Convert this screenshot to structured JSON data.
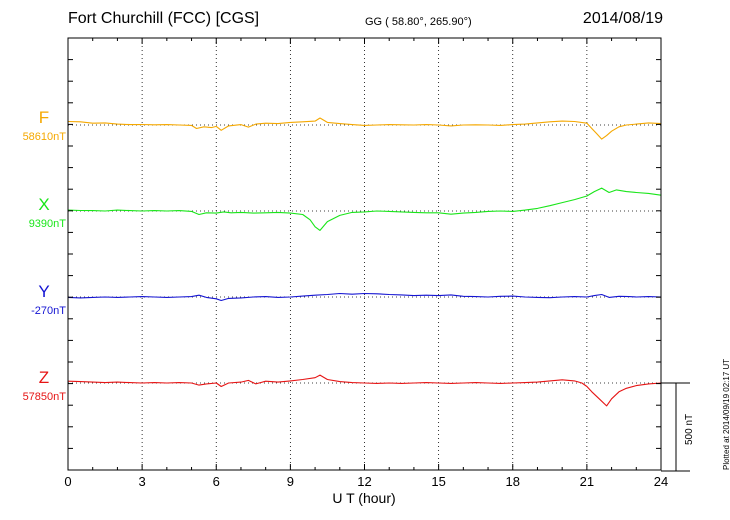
{
  "header": {
    "station": "Fort Churchill (FCC)  [CGS]",
    "coordinates": "GG ( 58.80°, 265.90°)",
    "date": "2014/08/19"
  },
  "footer": {
    "plotted": "Plotted at 2014/09/19 02:17 UT"
  },
  "scale_bar": {
    "label": "500 nT",
    "value_nT": 500
  },
  "chart_data": {
    "type": "line",
    "xlabel": "U T (hour)",
    "xlim": [
      0,
      24
    ],
    "x_ticks": [
      "0",
      "3",
      "6",
      "9",
      "12",
      "15",
      "18",
      "21",
      "24"
    ],
    "grid": true,
    "series": [
      {
        "name": "F",
        "baseline_label": "58610nT",
        "baseline_nT": 58610,
        "color": "#f5a800",
        "x": [
          0,
          0.5,
          1,
          1.5,
          2,
          2.5,
          3,
          3.5,
          4,
          4.5,
          5,
          5.2,
          5.5,
          5.8,
          6,
          6.2,
          6.5,
          7,
          7.3,
          7.6,
          8,
          8.5,
          9,
          9.5,
          10,
          10.2,
          10.5,
          11,
          11.5,
          12,
          12.5,
          13,
          13.5,
          14,
          14.5,
          15,
          15.5,
          16,
          16.5,
          17,
          17.5,
          18,
          18.5,
          19,
          19.5,
          20,
          20.5,
          21,
          21.2,
          21.4,
          21.6,
          21.8,
          22,
          22.3,
          22.6,
          23,
          23.5,
          24
        ],
        "y": [
          58630,
          58628,
          58620,
          58622,
          58615,
          58612,
          58613,
          58611,
          58612,
          58610,
          58608,
          58590,
          58600,
          58595,
          58602,
          58580,
          58605,
          58612,
          58598,
          58615,
          58620,
          58618,
          58625,
          58628,
          58632,
          58650,
          58625,
          58618,
          58612,
          58608,
          58610,
          58612,
          58611,
          58610,
          58612,
          58610,
          58605,
          58610,
          58611,
          58610,
          58608,
          58612,
          58615,
          58622,
          58628,
          58632,
          58630,
          58620,
          58590,
          58560,
          58530,
          58550,
          58575,
          58600,
          58610,
          58615,
          58622,
          58618
        ]
      },
      {
        "name": "X",
        "baseline_label": "9390nT",
        "baseline_nT": 9390,
        "color": "#19e619",
        "x": [
          0,
          0.5,
          1,
          1.5,
          2,
          2.5,
          3,
          3.5,
          4,
          4.5,
          5,
          5.3,
          5.6,
          6,
          6.3,
          6.6,
          7,
          7.5,
          8,
          8.5,
          9,
          9.5,
          9.8,
          10,
          10.2,
          10.5,
          11,
          11.5,
          12,
          12.5,
          13,
          13.5,
          14,
          14.5,
          15,
          15.5,
          16,
          16.5,
          17,
          17.5,
          18,
          18.5,
          19,
          19.5,
          20,
          20.5,
          21,
          21.3,
          21.6,
          21.9,
          22.2,
          22.6,
          23,
          23.5,
          24
        ],
        "y": [
          9395,
          9393,
          9392,
          9390,
          9395,
          9392,
          9390,
          9392,
          9390,
          9392,
          9388,
          9370,
          9380,
          9378,
          9385,
          9380,
          9382,
          9378,
          9380,
          9382,
          9378,
          9370,
          9340,
          9300,
          9280,
          9330,
          9365,
          9382,
          9385,
          9390,
          9388,
          9385,
          9382,
          9380,
          9380,
          9372,
          9378,
          9382,
          9388,
          9390,
          9388,
          9395,
          9405,
          9420,
          9438,
          9455,
          9475,
          9500,
          9520,
          9495,
          9510,
          9500,
          9495,
          9490,
          9480
        ]
      },
      {
        "name": "Y",
        "baseline_label": "-270nT",
        "baseline_nT": -270,
        "color": "#1414d2",
        "x": [
          0,
          0.5,
          1,
          1.5,
          2,
          2.5,
          3,
          3.5,
          4,
          4.5,
          5,
          5.3,
          5.6,
          6,
          6.2,
          6.5,
          7,
          7.5,
          8,
          8.5,
          9,
          9.5,
          10,
          10.5,
          11,
          11.5,
          12,
          12.5,
          13,
          13.5,
          14,
          14.5,
          15,
          15.5,
          16,
          16.5,
          17,
          17.5,
          18,
          18.5,
          19,
          19.5,
          20,
          20.5,
          21,
          21.3,
          21.6,
          21.9,
          22.3,
          22.7,
          23,
          23.5,
          24
        ],
        "y": [
          -272,
          -275,
          -272,
          -270,
          -272,
          -270,
          -268,
          -270,
          -272,
          -270,
          -268,
          -260,
          -272,
          -280,
          -290,
          -278,
          -275,
          -270,
          -268,
          -272,
          -270,
          -265,
          -260,
          -256,
          -250,
          -254,
          -250,
          -252,
          -256,
          -258,
          -262,
          -260,
          -262,
          -258,
          -266,
          -268,
          -270,
          -266,
          -265,
          -270,
          -272,
          -274,
          -270,
          -268,
          -270,
          -262,
          -256,
          -272,
          -266,
          -268,
          -270,
          -268,
          -270
        ]
      },
      {
        "name": "Z",
        "baseline_label": "57850nT",
        "baseline_nT": 57850,
        "color": "#e61414",
        "x": [
          0,
          0.5,
          1,
          1.5,
          2,
          2.5,
          3,
          3.5,
          4,
          4.5,
          5,
          5.3,
          5.6,
          6,
          6.2,
          6.5,
          7,
          7.3,
          7.6,
          8,
          8.5,
          9,
          9.5,
          10,
          10.2,
          10.5,
          11,
          11.5,
          12,
          12.5,
          13,
          13.5,
          14,
          14.5,
          15,
          15.5,
          16,
          16.5,
          17,
          17.5,
          18,
          18.5,
          19,
          19.5,
          20,
          20.5,
          20.8,
          21,
          21.2,
          21.5,
          21.8,
          22,
          22.3,
          22.6,
          23,
          23.5,
          24
        ],
        "y": [
          57860,
          57858,
          57855,
          57852,
          57855,
          57852,
          57850,
          57852,
          57850,
          57852,
          57850,
          57838,
          57845,
          57850,
          57830,
          57850,
          57855,
          57865,
          57845,
          57860,
          57855,
          57862,
          57870,
          57880,
          57895,
          57870,
          57858,
          57852,
          57850,
          57848,
          57850,
          57848,
          57850,
          57852,
          57850,
          57848,
          57850,
          57852,
          57850,
          57848,
          57850,
          57852,
          57855,
          57862,
          57868,
          57862,
          57850,
          57830,
          57800,
          57760,
          57720,
          57760,
          57800,
          57820,
          57835,
          57845,
          57850
        ]
      }
    ]
  }
}
